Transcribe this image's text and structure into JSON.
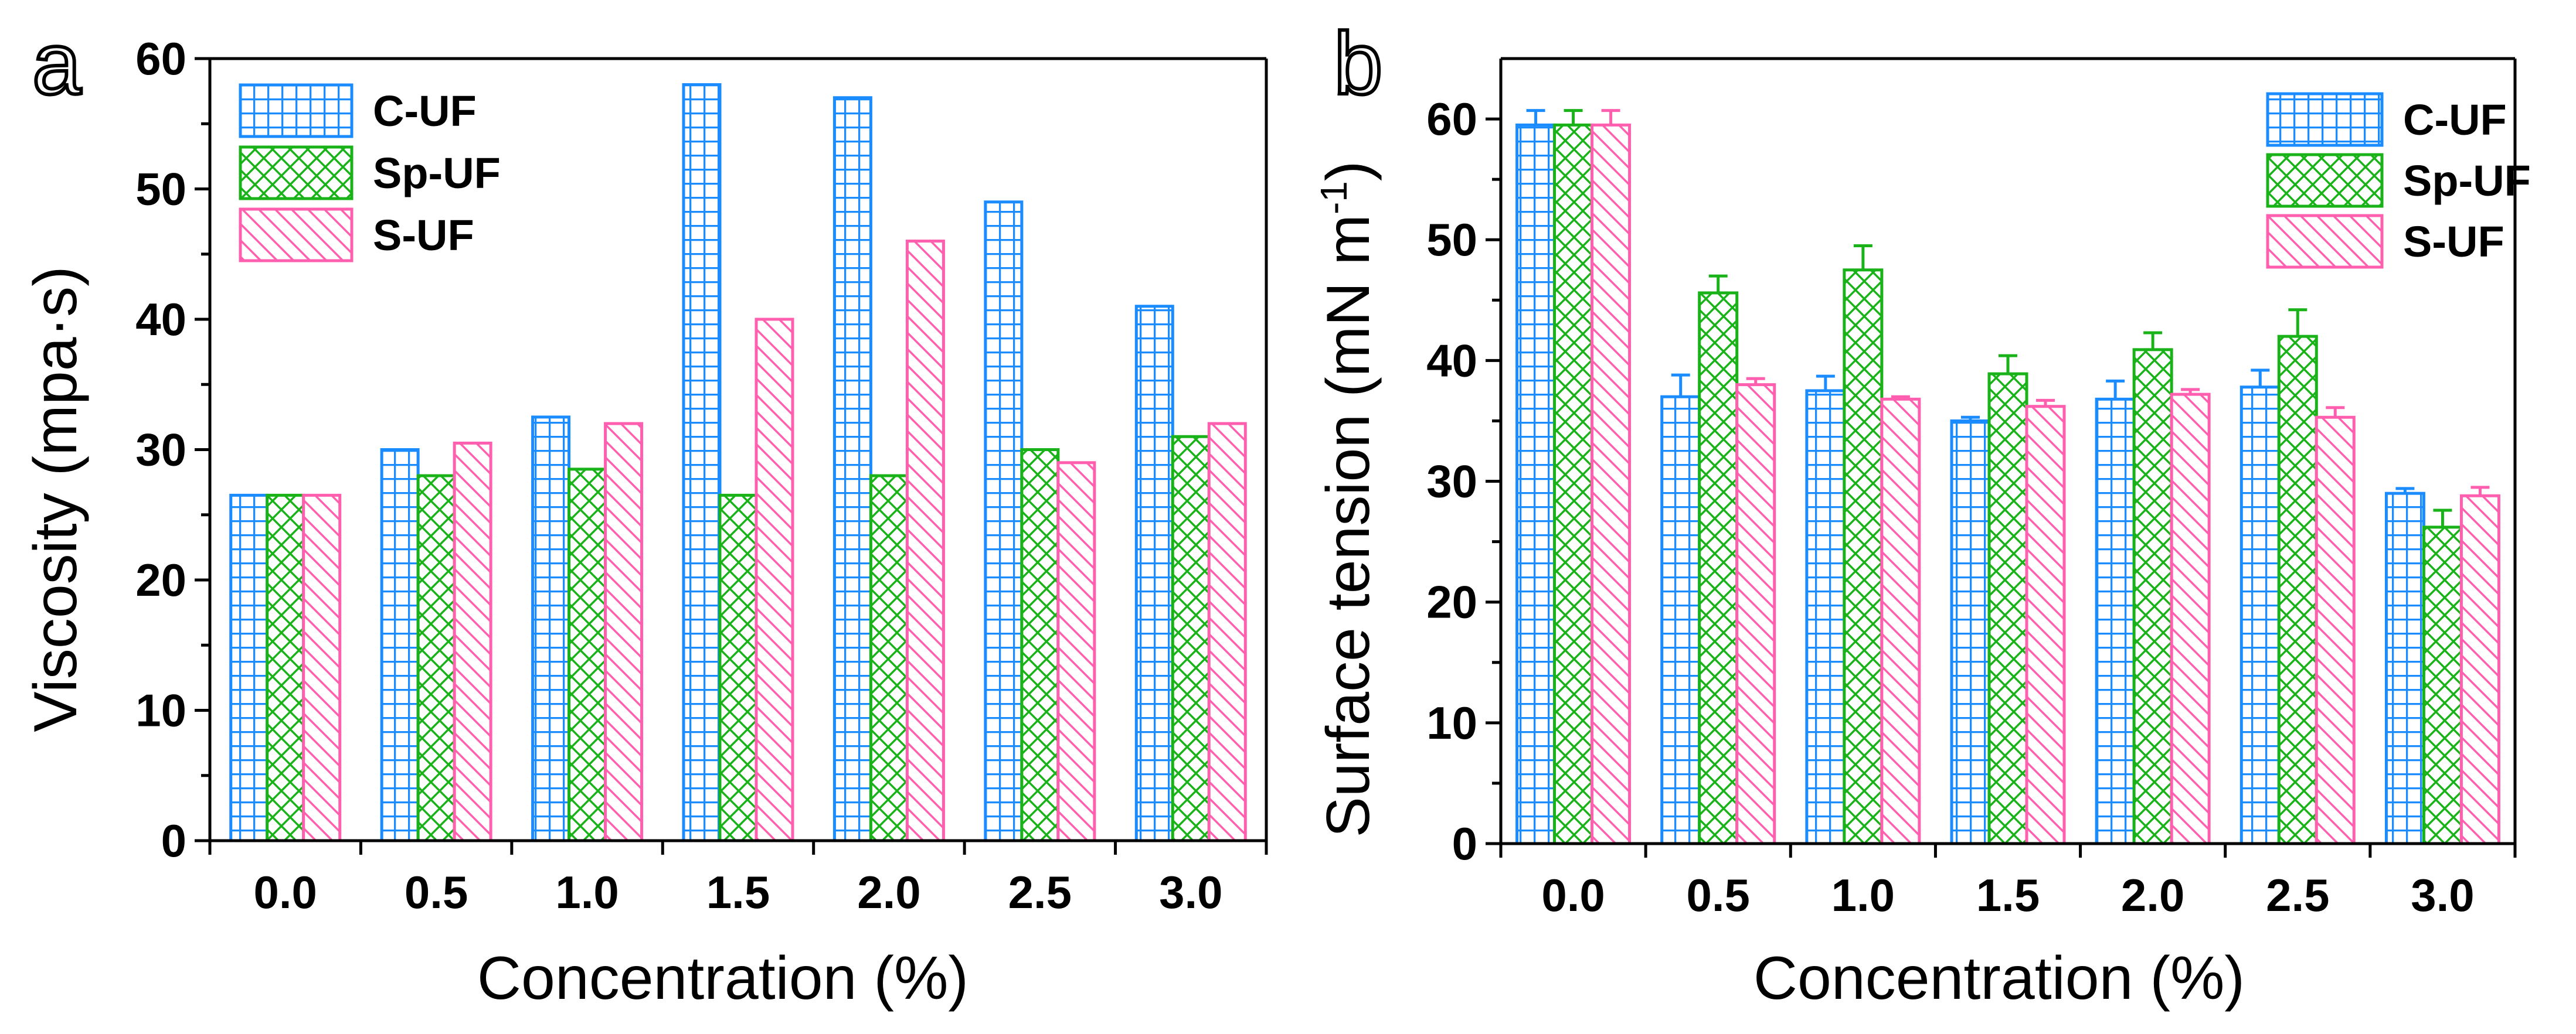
{
  "colors": {
    "c_uf": "#1a8cff",
    "sp_uf": "#19b319",
    "s_uf": "#ff5fae",
    "axis": "#000000"
  },
  "chart_data": [
    {
      "id": "a",
      "panel_label": "a",
      "type": "bar",
      "title": "",
      "xlabel": "Concentration (%)",
      "ylabel": "Viscosity (mpa·s)",
      "ylim": [
        0,
        60
      ],
      "yticks": [
        "0",
        "10",
        "20",
        "30",
        "40",
        "50",
        "60"
      ],
      "categories": [
        "0.0",
        "0.5",
        "1.0",
        "1.5",
        "2.0",
        "2.5",
        "3.0"
      ],
      "legend_position": "top-left",
      "series": [
        {
          "name": "C-UF",
          "pattern": "grid",
          "values": [
            26.5,
            30,
            32.5,
            58,
            57,
            49,
            41
          ]
        },
        {
          "name": "Sp-UF",
          "pattern": "crosshatch",
          "values": [
            26.5,
            28,
            28.5,
            26.5,
            28,
            30,
            31
          ]
        },
        {
          "name": "S-UF",
          "pattern": "diagonal",
          "values": [
            26.5,
            30.5,
            32,
            40,
            46,
            29,
            32
          ]
        }
      ]
    },
    {
      "id": "b",
      "panel_label": "b",
      "type": "bar",
      "title": "",
      "xlabel": "Concentration (%)",
      "ylabel": "Surface tension (mN m",
      "ylabel_superscript": "-1",
      "ylabel_suffix": ")",
      "ylim": [
        0,
        65
      ],
      "yticks": [
        "0",
        "10",
        "20",
        "30",
        "40",
        "50",
        "60"
      ],
      "categories": [
        "0.0",
        "0.5",
        "1.0",
        "1.5",
        "2.0",
        "2.5",
        "3.0"
      ],
      "legend_position": "top-right",
      "series": [
        {
          "name": "C-UF",
          "pattern": "grid",
          "values": [
            59.5,
            37,
            37.5,
            35,
            36.8,
            37.8,
            29
          ],
          "errors": [
            1.2,
            1.8,
            1.2,
            0.3,
            1.5,
            1.4,
            0.4
          ]
        },
        {
          "name": "Sp-UF",
          "pattern": "crosshatch",
          "values": [
            59.5,
            45.6,
            47.5,
            38.9,
            40.9,
            42,
            26.2
          ],
          "errors": [
            1.2,
            1.4,
            2.0,
            1.5,
            1.4,
            2.2,
            1.4
          ]
        },
        {
          "name": "S-UF",
          "pattern": "diagonal",
          "values": [
            59.5,
            38,
            36.8,
            36.2,
            37.2,
            35.3,
            28.8
          ],
          "errors": [
            1.2,
            0.5,
            0.2,
            0.5,
            0.4,
            0.8,
            0.7
          ]
        }
      ]
    }
  ]
}
